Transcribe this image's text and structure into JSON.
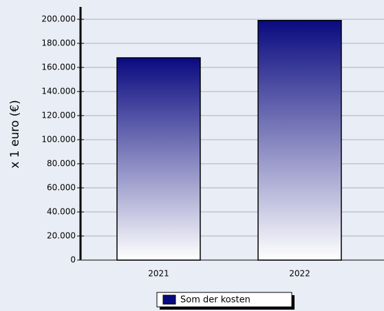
{
  "chart_data": {
    "type": "bar",
    "y_label": "x 1 euro (€)",
    "categories": [
      "2021",
      "2022"
    ],
    "series": [
      {
        "name": "Som der kosten",
        "color": "#0a0a80",
        "values": [
          168000,
          199000
        ]
      }
    ],
    "ylim": [
      0,
      200000
    ],
    "yticks": [
      0,
      {
        "value": 20000,
        "label": "20.000"
      },
      {
        "value": 40000,
        "label": "40.000"
      },
      {
        "value": 60000,
        "label": "60.000"
      },
      {
        "value": 80000,
        "label": "80.000"
      },
      {
        "value": 100000,
        "label": "100.000"
      },
      {
        "value": 120000,
        "label": "120.000"
      },
      {
        "value": 140000,
        "label": "140.000"
      },
      {
        "value": 160000,
        "label": "160.000"
      },
      {
        "value": 180000,
        "label": "180.000"
      },
      {
        "value": 200000,
        "label": "200.000"
      }
    ],
    "grid": true,
    "legend": "bottom"
  }
}
